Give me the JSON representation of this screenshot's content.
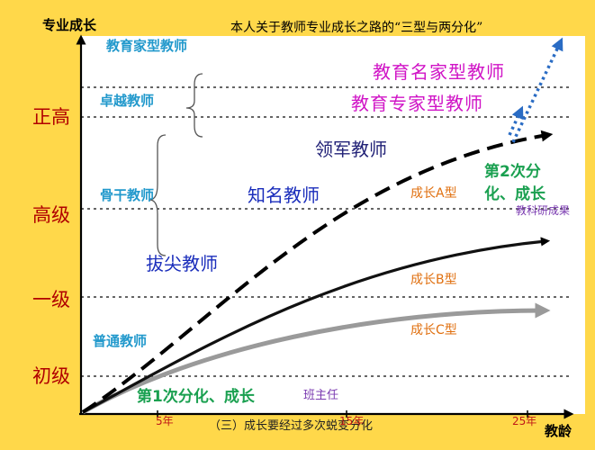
{
  "axes": {
    "y_title": "专业成长",
    "x_title": "教龄"
  },
  "title": "本人关于教师专业成长之路的“三型与两分化”",
  "caption": "（三）成长要经过多次蜕变分化",
  "levels": [
    "正高",
    "高级",
    "一级",
    "初级"
  ],
  "x_ticks": [
    "5年",
    "15年",
    "25年"
  ],
  "left_labels": {
    "edu_expert_type": "教育家型教师",
    "excellent": "卓越教师",
    "backbone": "骨干教师",
    "ordinary": "普通教师"
  },
  "middle_labels": {
    "leader": "领军教师",
    "famous": "知名教师",
    "top": "拔尖教师"
  },
  "top_labels": {
    "famous_educator": "教育名家型教师",
    "expert_educator": "教育专家型教师"
  },
  "growth_labels": {
    "a": "成长A型",
    "b": "成长B型",
    "c": "成长C型"
  },
  "differentiation": {
    "first": "第1次分化、成长",
    "second_line1": "第2次分",
    "second_line2": "化、成长"
  },
  "notes": {
    "research": "教科研成果",
    "head_teacher": "班主任"
  },
  "colors": {
    "background": "#ffd84a",
    "level_text": "#b00000",
    "curve_a": "#000000",
    "curve_b": "#111111",
    "curve_c": "#9a9a9a",
    "arrows_blue": "#2a6cc4"
  }
}
